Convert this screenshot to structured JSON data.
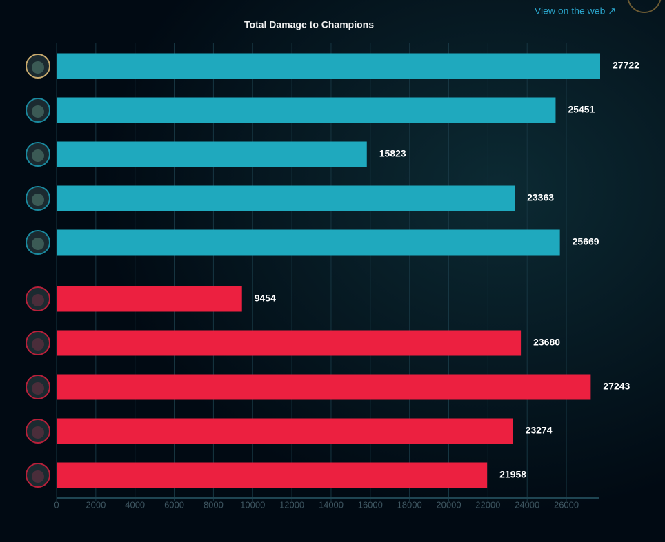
{
  "link": "View on the web ↗",
  "chart_data": {
    "type": "bar",
    "orientation": "horizontal",
    "title": "Total Damage to Champions",
    "categories": [
      null,
      null,
      null,
      null,
      null,
      null,
      null,
      null,
      null,
      null
    ],
    "values": [
      27722,
      25451,
      15823,
      23363,
      25669,
      9454,
      23680,
      27243,
      23274,
      21958
    ],
    "colors": [
      "#1fa9be",
      "#1fa9be",
      "#1fa9be",
      "#1fa9be",
      "#1fa9be",
      "#ec2040",
      "#ec2040",
      "#ec2040",
      "#ec2040",
      "#ec2040"
    ],
    "xlim": [
      0,
      27722
    ],
    "xticks": [
      0,
      2000,
      4000,
      6000,
      8000,
      10000,
      12000,
      14000,
      16000,
      18000,
      20000,
      22000,
      24000,
      26000
    ],
    "grid": true
  }
}
